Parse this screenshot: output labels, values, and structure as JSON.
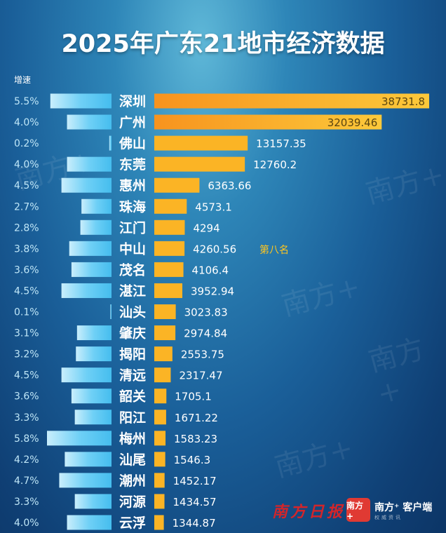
{
  "chart_data": {
    "type": "bar",
    "title": "2025年广东21地市经济数据",
    "growth_header": "增速",
    "categories": [
      "深圳",
      "广州",
      "佛山",
      "东莞",
      "惠州",
      "珠海",
      "江门",
      "中山",
      "茂名",
      "湛江",
      "汕头",
      "肇庆",
      "揭阳",
      "清远",
      "韶关",
      "阳江",
      "梅州",
      "汕尾",
      "潮州",
      "河源",
      "云浮"
    ],
    "series": [
      {
        "values": [
          38731.8,
          32039.46,
          13157.35,
          12760.2,
          6363.66,
          4573.1,
          4294,
          4260.56,
          4106.4,
          3952.94,
          3023.83,
          2974.84,
          2553.75,
          2317.47,
          1705.1,
          1671.22,
          1583.23,
          1546.3,
          1452.17,
          1434.57,
          1344.87
        ],
        "labels": [
          "38731.8",
          "32039.46",
          "13157.35",
          "12760.2",
          "6363.66",
          "4573.1",
          "4294",
          "4260.56",
          "4106.4",
          "3952.94",
          "3023.83",
          "2974.84",
          "2553.75",
          "2317.47",
          "1705.1",
          "1671.22",
          "1583.23",
          "1546.3",
          "1452.17",
          "1434.57",
          "1344.87"
        ]
      },
      {
        "values": [
          5.5,
          4.0,
          0.2,
          4.0,
          4.5,
          2.7,
          2.8,
          3.8,
          3.6,
          4.5,
          0.1,
          3.1,
          3.2,
          4.5,
          3.6,
          3.3,
          5.8,
          4.2,
          4.7,
          3.3,
          4.0
        ],
        "labels": [
          "5.5%",
          "4.0%",
          "0.2%",
          "4.0%",
          "4.5%",
          "2.7%",
          "2.8%",
          "3.8%",
          "3.6%",
          "4.5%",
          "0.1%",
          "3.1%",
          "3.2%",
          "4.5%",
          "3.6%",
          "3.3%",
          "5.8%",
          "4.2%",
          "4.7%",
          "3.3%",
          "4.0%"
        ]
      }
    ],
    "annotation": {
      "category": "中山",
      "text": "第八名"
    },
    "colors": {
      "gdp_bar": "#fbb425",
      "growth_bar": "#4cc3f0",
      "annotation": "#ffc61e"
    }
  },
  "branding": {
    "logo1": "南方日报",
    "logo2_icon": "南方+",
    "logo2_text": "南方⁺ 客户端",
    "logo2_sub": "权威资讯"
  }
}
